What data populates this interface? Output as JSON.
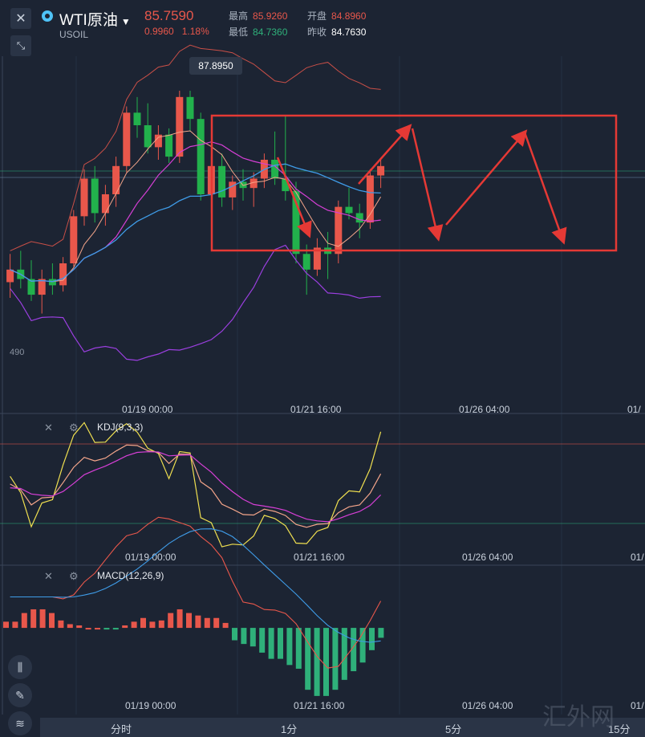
{
  "header": {
    "title": "WTI原油",
    "symbol": "USOIL",
    "price": "85.7590",
    "change": "0.9960",
    "change_pct": "1.18%",
    "high_label": "最高",
    "high": "85.9260",
    "open_label": "开盘",
    "open": "84.8960",
    "low_label": "最低",
    "low": "84.7360",
    "prev_label": "昨收",
    "prev": "84.7630"
  },
  "tooltip": "87.8950",
  "partial_level": "490",
  "kdj": {
    "label": "KDJ(9,3,3)"
  },
  "macd": {
    "label": "MACD(12,26,9)"
  },
  "time_labels": [
    "01/19 00:00",
    "01/21 16:00",
    "01/26 04:00",
    "01/"
  ],
  "tabs": [
    "分时",
    "1分",
    "5分",
    "15分"
  ],
  "watermark": "汇外网",
  "colors": {
    "up": "#e8574b",
    "down": "#22b14c",
    "bg": "#1c2433",
    "annot": "#e53935"
  },
  "chart_data": {
    "type": "candlestick",
    "candles": [
      {
        "o": 84.9,
        "h": 85.35,
        "l": 84.65,
        "c": 85.1
      },
      {
        "o": 85.1,
        "h": 85.4,
        "l": 84.8,
        "c": 84.95
      },
      {
        "o": 84.95,
        "h": 85.25,
        "l": 84.6,
        "c": 84.7
      },
      {
        "o": 84.7,
        "h": 85.1,
        "l": 84.4,
        "c": 84.95
      },
      {
        "o": 84.95,
        "h": 85.2,
        "l": 84.7,
        "c": 84.85
      },
      {
        "o": 84.85,
        "h": 85.3,
        "l": 84.75,
        "c": 85.2
      },
      {
        "o": 85.2,
        "h": 86.05,
        "l": 85.15,
        "c": 85.95
      },
      {
        "o": 85.95,
        "h": 86.7,
        "l": 85.8,
        "c": 86.55
      },
      {
        "o": 86.55,
        "h": 86.75,
        "l": 85.85,
        "c": 86.0
      },
      {
        "o": 86.0,
        "h": 86.45,
        "l": 85.8,
        "c": 86.3
      },
      {
        "o": 86.3,
        "h": 86.9,
        "l": 86.1,
        "c": 86.75
      },
      {
        "o": 86.75,
        "h": 87.7,
        "l": 86.65,
        "c": 87.6
      },
      {
        "o": 87.6,
        "h": 87.85,
        "l": 87.2,
        "c": 87.4
      },
      {
        "o": 87.4,
        "h": 87.75,
        "l": 86.95,
        "c": 87.05
      },
      {
        "o": 87.05,
        "h": 87.4,
        "l": 86.85,
        "c": 87.25
      },
      {
        "o": 87.25,
        "h": 87.35,
        "l": 86.8,
        "c": 86.9
      },
      {
        "o": 86.9,
        "h": 87.95,
        "l": 86.8,
        "c": 87.85
      },
      {
        "o": 87.85,
        "h": 87.95,
        "l": 87.3,
        "c": 87.5
      },
      {
        "o": 87.5,
        "h": 87.6,
        "l": 86.2,
        "c": 86.3
      },
      {
        "o": 86.3,
        "h": 86.9,
        "l": 86.0,
        "c": 86.75
      },
      {
        "o": 86.75,
        "h": 86.95,
        "l": 86.1,
        "c": 86.25
      },
      {
        "o": 86.25,
        "h": 86.6,
        "l": 86.05,
        "c": 86.5
      },
      {
        "o": 86.5,
        "h": 86.7,
        "l": 86.2,
        "c": 86.4
      },
      {
        "o": 86.4,
        "h": 86.65,
        "l": 86.1,
        "c": 86.55
      },
      {
        "o": 86.55,
        "h": 86.95,
        "l": 86.4,
        "c": 86.85
      },
      {
        "o": 86.85,
        "h": 87.3,
        "l": 86.45,
        "c": 86.55
      },
      {
        "o": 86.55,
        "h": 87.55,
        "l": 86.2,
        "c": 86.35
      },
      {
        "o": 86.35,
        "h": 86.5,
        "l": 85.2,
        "c": 85.35
      },
      {
        "o": 85.35,
        "h": 85.5,
        "l": 84.7,
        "c": 85.1
      },
      {
        "o": 85.1,
        "h": 85.6,
        "l": 85.0,
        "c": 85.45
      },
      {
        "o": 85.45,
        "h": 85.7,
        "l": 84.95,
        "c": 85.35
      },
      {
        "o": 85.35,
        "h": 86.2,
        "l": 85.2,
        "c": 86.1
      },
      {
        "o": 86.1,
        "h": 86.4,
        "l": 85.9,
        "c": 86.0
      },
      {
        "o": 86.0,
        "h": 86.15,
        "l": 85.6,
        "c": 85.85
      },
      {
        "o": 85.85,
        "h": 86.7,
        "l": 85.75,
        "c": 86.6
      },
      {
        "o": 86.6,
        "h": 86.85,
        "l": 86.4,
        "c": 86.75
      }
    ],
    "ylim": [
      83.0,
      88.5
    ],
    "macd_hist": [
      0.05,
      0.05,
      0.12,
      0.15,
      0.15,
      0.12,
      0.06,
      0.03,
      0.02,
      0.0,
      0.0,
      -0.01,
      -0.01,
      0.02,
      0.05,
      0.08,
      0.05,
      0.06,
      0.12,
      0.15,
      0.12,
      0.1,
      0.08,
      0.08,
      0.04,
      -0.1,
      -0.13,
      -0.15,
      -0.2,
      -0.25,
      -0.25,
      -0.3,
      -0.33,
      -0.5,
      -0.55,
      -0.55,
      -0.5,
      -0.42,
      -0.35,
      -0.28,
      -0.18,
      -0.08
    ],
    "macd_ylim": [
      -0.7,
      0.5
    ],
    "kdj_ylim": [
      -10,
      110
    ]
  }
}
